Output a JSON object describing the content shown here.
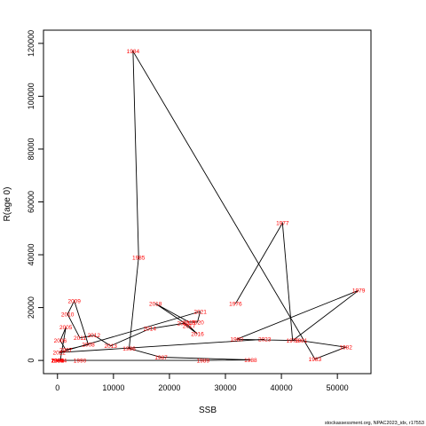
{
  "chart_data": {
    "type": "line",
    "xlabel": "SSB",
    "ylabel": "R(age 0)",
    "xlim": [
      -2500,
      56000
    ],
    "ylim": [
      -5000,
      125000
    ],
    "xticks": [
      0,
      10000,
      20000,
      30000,
      40000,
      50000
    ],
    "yticks": [
      0,
      20000,
      40000,
      60000,
      80000,
      100000,
      120000
    ],
    "line_color": "#000000",
    "label_color": "#ff0000",
    "grid": false,
    "credit": "stockassessment.org, NPAC2023_idx, r17553",
    "points": [
      {
        "year": "1976",
        "x": 31800,
        "y": 21500
      },
      {
        "year": "1977",
        "x": 40200,
        "y": 52000
      },
      {
        "year": "1978",
        "x": 42000,
        "y": 7500
      },
      {
        "year": "1979",
        "x": 53800,
        "y": 26500
      },
      {
        "year": "1980",
        "x": 32000,
        "y": 8000
      },
      {
        "year": "1981",
        "x": 43500,
        "y": 7500
      },
      {
        "year": "1982",
        "x": 51500,
        "y": 5000
      },
      {
        "year": "1983",
        "x": 46000,
        "y": 500
      },
      {
        "year": "1984",
        "x": 13500,
        "y": 117000
      },
      {
        "year": "1985",
        "x": 14500,
        "y": 39000
      },
      {
        "year": "1986",
        "x": 12800,
        "y": 4500
      },
      {
        "year": "1987",
        "x": 18500,
        "y": 1200
      },
      {
        "year": "1988",
        "x": 34500,
        "y": 200
      },
      {
        "year": "1989",
        "x": 26000,
        "y": 0
      },
      {
        "year": "1990",
        "x": 4000,
        "y": 0
      },
      {
        "year": "1991",
        "x": 0,
        "y": 0
      },
      {
        "year": "1992",
        "x": 0,
        "y": 0
      },
      {
        "year": "1993",
        "x": 0,
        "y": 0
      },
      {
        "year": "1994",
        "x": 0,
        "y": 0
      },
      {
        "year": "1995",
        "x": 0,
        "y": 0
      },
      {
        "year": "1996",
        "x": 0,
        "y": 0
      },
      {
        "year": "1997",
        "x": 0,
        "y": 0
      },
      {
        "year": "1998",
        "x": 0,
        "y": 0
      },
      {
        "year": "1999",
        "x": 0,
        "y": 0
      },
      {
        "year": "2000",
        "x": 0,
        "y": 0
      },
      {
        "year": "2001",
        "x": 0,
        "y": 0
      },
      {
        "year": "2002",
        "x": 0,
        "y": 0
      },
      {
        "year": "2003",
        "x": 0,
        "y": 0
      },
      {
        "year": "2004",
        "x": 500,
        "y": 0
      },
      {
        "year": "2005",
        "x": 1500,
        "y": 12500
      },
      {
        "year": "2006",
        "x": 500,
        "y": 7500
      },
      {
        "year": "2007",
        "x": 1500,
        "y": 4000
      },
      {
        "year": "2008",
        "x": 5500,
        "y": 6000
      },
      {
        "year": "2009",
        "x": 3000,
        "y": 22500
      },
      {
        "year": "2010",
        "x": 1800,
        "y": 17500
      },
      {
        "year": "2011",
        "x": 4000,
        "y": 8500
      },
      {
        "year": "2012",
        "x": 6500,
        "y": 9500
      },
      {
        "year": "2013",
        "x": 9500,
        "y": 5500
      },
      {
        "year": "2014",
        "x": 16500,
        "y": 12000
      },
      {
        "year": "2015",
        "x": 22500,
        "y": 14000
      },
      {
        "year": "2016",
        "x": 25000,
        "y": 10000
      },
      {
        "year": "2017",
        "x": 23500,
        "y": 13000
      },
      {
        "year": "2018",
        "x": 17500,
        "y": 21500
      },
      {
        "year": "2019",
        "x": 23500,
        "y": 14500
      },
      {
        "year": "2020",
        "x": 25000,
        "y": 14500
      },
      {
        "year": "2021",
        "x": 25500,
        "y": 18500
      },
      {
        "year": "2022",
        "x": 300,
        "y": 3000
      },
      {
        "year": "2023",
        "x": 37000,
        "y": 8000
      }
    ]
  }
}
